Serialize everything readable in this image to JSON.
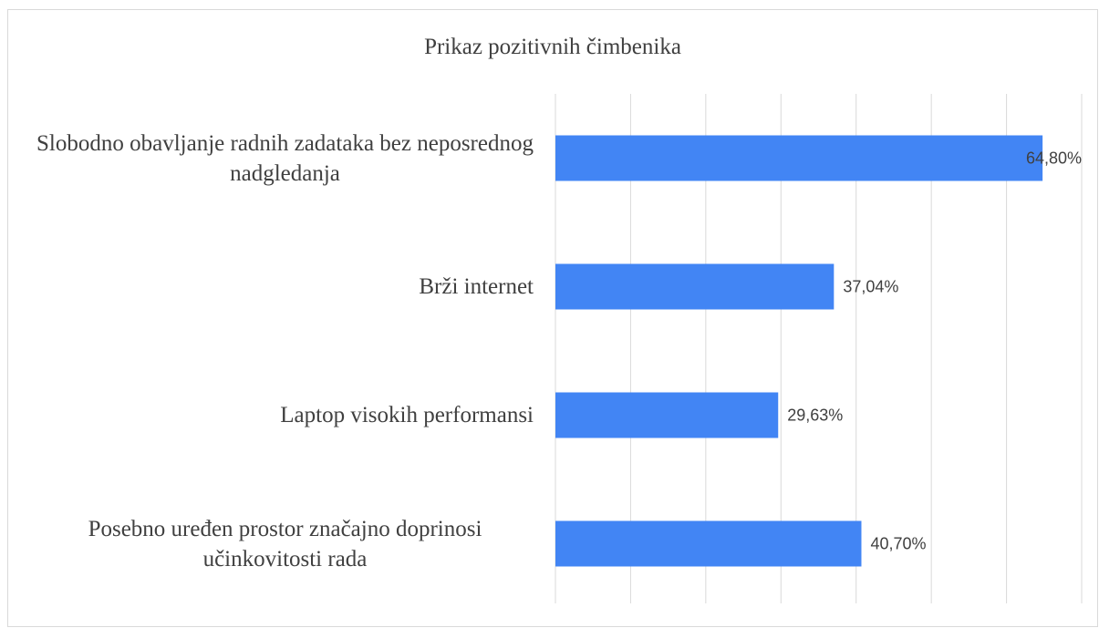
{
  "chart_data": {
    "type": "barh",
    "title": "Prikaz pozitivnih čimbenika",
    "categories": [
      "Slobodno obavljanje radnih zadataka bez neposrednog nadgledanja",
      "Brži internet",
      "Laptop visokih performansi",
      "Posebno uređen prostor značajno doprinosi učinkovitosti rada"
    ],
    "values": [
      64.8,
      37.04,
      29.63,
      40.7
    ],
    "value_labels": [
      "64,80%",
      "37,04%",
      "29,63%",
      "40,70%"
    ],
    "color": "#4285f4",
    "xlim": [
      0,
      70
    ],
    "xticks": [
      0,
      10,
      20,
      30,
      40,
      50,
      60,
      70
    ],
    "grid": true
  }
}
